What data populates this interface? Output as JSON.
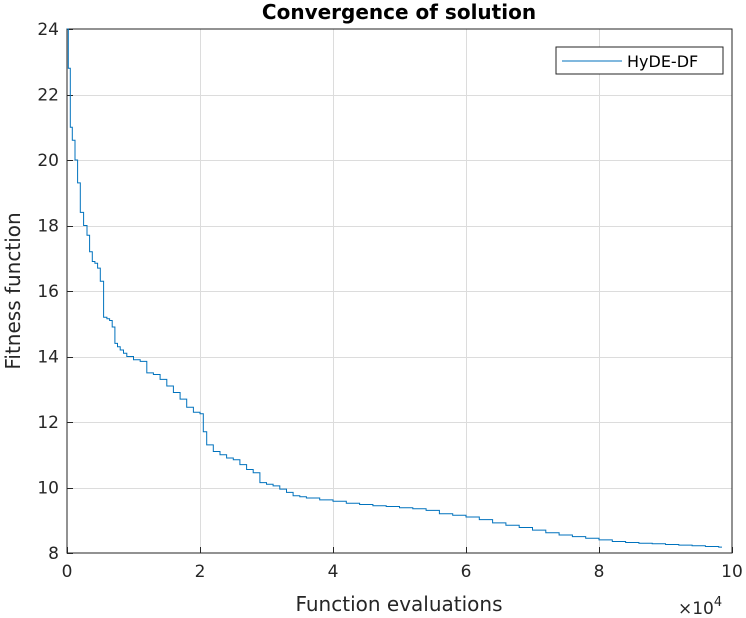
{
  "chart_data": {
    "type": "line",
    "title": "Convergence of solution",
    "xlabel": "Function evaluations",
    "ylabel": "Fitness function",
    "x_exponent_label": "×10",
    "x_exponent_power": "4",
    "xlim": [
      0,
      100000
    ],
    "ylim": [
      8,
      24
    ],
    "xticks": [
      0,
      20000,
      40000,
      60000,
      80000,
      100000
    ],
    "xtick_labels": [
      "0",
      "2",
      "4",
      "6",
      "8",
      "10"
    ],
    "yticks": [
      8,
      10,
      12,
      14,
      16,
      18,
      20,
      22,
      24
    ],
    "ytick_labels": [
      "8",
      "10",
      "12",
      "14",
      "16",
      "18",
      "20",
      "22",
      "24"
    ],
    "grid": true,
    "legend_position": "top-right",
    "series": [
      {
        "name": "HyDE-DF",
        "color": "#0072BD",
        "x": [
          0,
          200,
          500,
          800,
          1200,
          1600,
          2000,
          2500,
          3000,
          3400,
          3800,
          4200,
          4600,
          5000,
          5500,
          6000,
          6400,
          6800,
          7200,
          7600,
          8000,
          8500,
          9000,
          10000,
          11000,
          12000,
          13000,
          14000,
          15000,
          16000,
          17000,
          18000,
          19000,
          20000,
          20500,
          21000,
          22000,
          23000,
          24000,
          25000,
          26000,
          27000,
          28000,
          29000,
          30000,
          31000,
          32000,
          33000,
          34000,
          35000,
          36000,
          38000,
          40000,
          42000,
          44000,
          46000,
          48000,
          50000,
          52000,
          54000,
          56000,
          58000,
          60000,
          62000,
          64000,
          66000,
          68000,
          70000,
          72000,
          74000,
          76000,
          78000,
          80000,
          82000,
          84000,
          86000,
          88000,
          90000,
          92000,
          94000,
          96000,
          98000,
          98500
        ],
        "y": [
          24.0,
          22.8,
          21.0,
          20.6,
          20.0,
          19.3,
          18.4,
          18.0,
          17.7,
          17.2,
          16.9,
          16.85,
          16.7,
          16.3,
          15.2,
          15.15,
          15.1,
          14.9,
          14.4,
          14.3,
          14.2,
          14.1,
          14.0,
          13.9,
          13.85,
          13.5,
          13.45,
          13.3,
          13.1,
          12.9,
          12.7,
          12.45,
          12.3,
          12.25,
          11.7,
          11.3,
          11.1,
          11.0,
          10.9,
          10.85,
          10.7,
          10.55,
          10.45,
          10.15,
          10.1,
          10.05,
          9.95,
          9.85,
          9.75,
          9.72,
          9.68,
          9.62,
          9.58,
          9.52,
          9.48,
          9.44,
          9.42,
          9.38,
          9.35,
          9.3,
          9.2,
          9.15,
          9.1,
          9.02,
          8.92,
          8.85,
          8.78,
          8.7,
          8.62,
          8.55,
          8.5,
          8.45,
          8.4,
          8.35,
          8.32,
          8.3,
          8.28,
          8.26,
          8.24,
          8.22,
          8.2,
          8.18,
          8.18
        ]
      }
    ]
  }
}
